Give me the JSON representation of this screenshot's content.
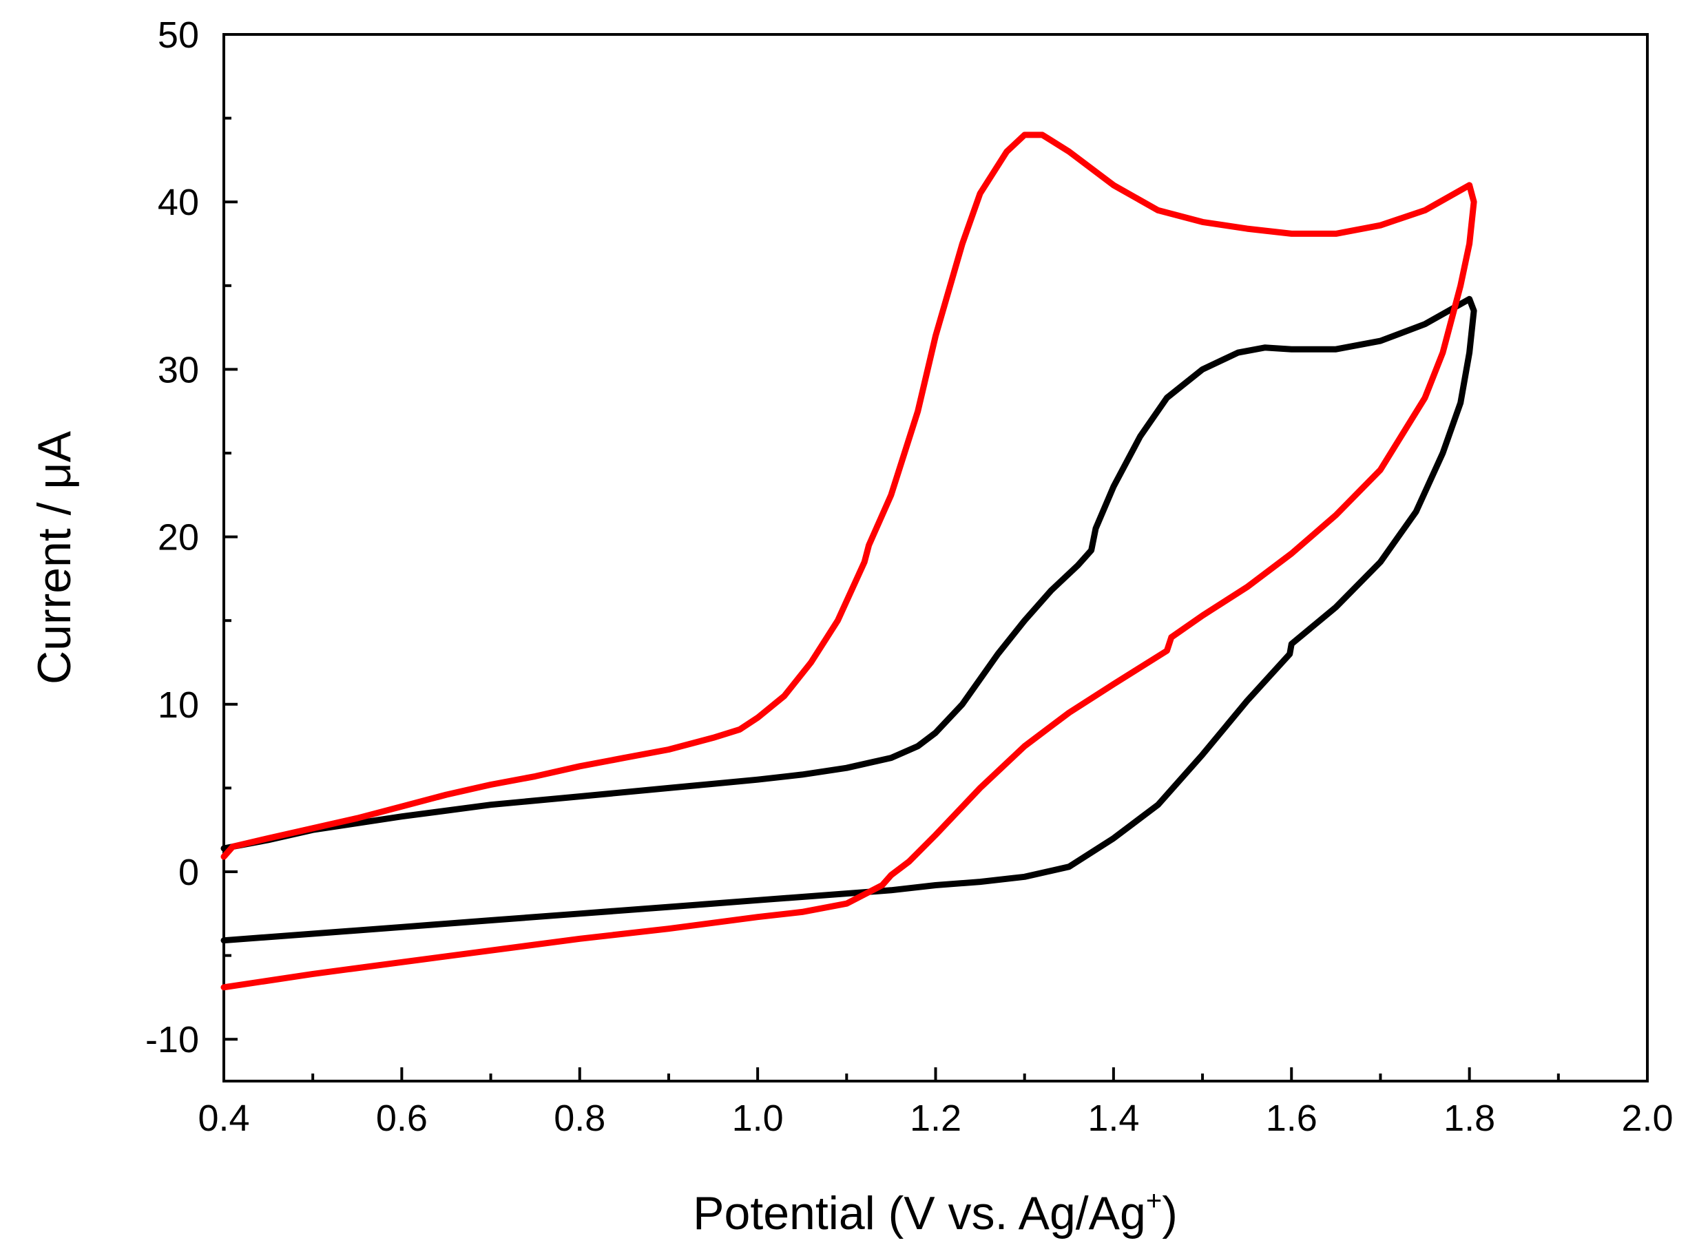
{
  "chart_data": {
    "type": "line",
    "title": "",
    "xlabel": "Potential (V vs. Ag/Ag",
    "xlabel_sup": "+",
    "xlabel_end": ")",
    "ylabel": "Current / μA",
    "xlim": [
      0.4,
      2.0
    ],
    "ylim": [
      -12.5,
      50
    ],
    "x_ticks": [
      0.4,
      0.6,
      0.8,
      1.0,
      1.2,
      1.4,
      1.6,
      1.8,
      2.0
    ],
    "x_tick_labels": [
      "0.4",
      "0.6",
      "0.8",
      "1.0",
      "1.2",
      "1.4",
      "1.6",
      "1.8",
      "2.0"
    ],
    "x_minor_ticks": [
      0.5,
      0.7,
      0.9,
      1.1,
      1.3,
      1.5,
      1.7,
      1.9
    ],
    "y_ticks": [
      -10,
      0,
      10,
      20,
      30,
      40,
      50
    ],
    "y_tick_labels": [
      "-10",
      "0",
      "10",
      "20",
      "30",
      "40",
      "50"
    ],
    "y_minor_ticks": [
      -5,
      5,
      15,
      25,
      35,
      45
    ],
    "grid": false,
    "series": [
      {
        "name": "black",
        "color": "#000000",
        "points": [
          [
            0.4,
            1.4
          ],
          [
            0.45,
            1.9
          ],
          [
            0.5,
            2.5
          ],
          [
            0.6,
            3.3
          ],
          [
            0.7,
            4.0
          ],
          [
            0.8,
            4.5
          ],
          [
            0.9,
            5.0
          ],
          [
            1.0,
            5.5
          ],
          [
            1.05,
            5.8
          ],
          [
            1.1,
            6.2
          ],
          [
            1.15,
            6.8
          ],
          [
            1.18,
            7.5
          ],
          [
            1.2,
            8.3
          ],
          [
            1.23,
            10.0
          ],
          [
            1.27,
            13.0
          ],
          [
            1.3,
            15.0
          ],
          [
            1.33,
            16.8
          ],
          [
            1.36,
            18.3
          ],
          [
            1.375,
            19.2
          ],
          [
            1.38,
            20.5
          ],
          [
            1.4,
            23.0
          ],
          [
            1.43,
            26.0
          ],
          [
            1.46,
            28.3
          ],
          [
            1.5,
            30.0
          ],
          [
            1.54,
            31.0
          ],
          [
            1.57,
            31.3
          ],
          [
            1.6,
            31.2
          ],
          [
            1.65,
            31.2
          ],
          [
            1.7,
            31.7
          ],
          [
            1.75,
            32.7
          ],
          [
            1.8,
            34.2
          ],
          [
            1.805,
            33.5
          ],
          [
            1.8,
            31.0
          ],
          [
            1.79,
            28.0
          ],
          [
            1.77,
            25.0
          ],
          [
            1.74,
            21.5
          ],
          [
            1.7,
            18.5
          ],
          [
            1.65,
            15.8
          ],
          [
            1.6,
            13.6
          ],
          [
            1.598,
            13.0
          ],
          [
            1.55,
            10.2
          ],
          [
            1.5,
            7.0
          ],
          [
            1.45,
            4.0
          ],
          [
            1.4,
            2.0
          ],
          [
            1.35,
            0.3
          ],
          [
            1.3,
            -0.3
          ],
          [
            1.25,
            -0.6
          ],
          [
            1.2,
            -0.8
          ],
          [
            1.15,
            -1.1
          ],
          [
            1.1,
            -1.3
          ],
          [
            1.0,
            -1.7
          ],
          [
            0.9,
            -2.1
          ],
          [
            0.8,
            -2.5
          ],
          [
            0.7,
            -2.9
          ],
          [
            0.6,
            -3.3
          ],
          [
            0.5,
            -3.7
          ],
          [
            0.4,
            -4.1
          ]
        ]
      },
      {
        "name": "red",
        "color": "#ff0000",
        "points": [
          [
            0.4,
            0.9
          ],
          [
            0.41,
            1.5
          ],
          [
            0.45,
            2.0
          ],
          [
            0.5,
            2.6
          ],
          [
            0.55,
            3.2
          ],
          [
            0.6,
            3.9
          ],
          [
            0.65,
            4.6
          ],
          [
            0.7,
            5.2
          ],
          [
            0.75,
            5.7
          ],
          [
            0.8,
            6.3
          ],
          [
            0.85,
            6.8
          ],
          [
            0.9,
            7.3
          ],
          [
            0.95,
            8.0
          ],
          [
            0.98,
            8.5
          ],
          [
            1.0,
            9.2
          ],
          [
            1.03,
            10.5
          ],
          [
            1.06,
            12.5
          ],
          [
            1.09,
            15.0
          ],
          [
            1.12,
            18.5
          ],
          [
            1.125,
            19.5
          ],
          [
            1.15,
            22.5
          ],
          [
            1.18,
            27.5
          ],
          [
            1.2,
            32.0
          ],
          [
            1.23,
            37.5
          ],
          [
            1.25,
            40.5
          ],
          [
            1.28,
            43.0
          ],
          [
            1.3,
            44.0
          ],
          [
            1.32,
            44.0
          ],
          [
            1.35,
            43.0
          ],
          [
            1.4,
            41.0
          ],
          [
            1.45,
            39.5
          ],
          [
            1.5,
            38.8
          ],
          [
            1.55,
            38.4
          ],
          [
            1.6,
            38.1
          ],
          [
            1.65,
            38.1
          ],
          [
            1.7,
            38.6
          ],
          [
            1.75,
            39.5
          ],
          [
            1.8,
            41.0
          ],
          [
            1.805,
            40.0
          ],
          [
            1.8,
            37.5
          ],
          [
            1.79,
            35.0
          ],
          [
            1.77,
            31.0
          ],
          [
            1.75,
            28.3
          ],
          [
            1.7,
            24.0
          ],
          [
            1.65,
            21.3
          ],
          [
            1.6,
            19.0
          ],
          [
            1.55,
            17.0
          ],
          [
            1.5,
            15.3
          ],
          [
            1.465,
            14.0
          ],
          [
            1.46,
            13.2
          ],
          [
            1.4,
            11.2
          ],
          [
            1.35,
            9.5
          ],
          [
            1.3,
            7.5
          ],
          [
            1.25,
            5.0
          ],
          [
            1.2,
            2.2
          ],
          [
            1.17,
            0.6
          ],
          [
            1.15,
            -0.2
          ],
          [
            1.14,
            -0.8
          ],
          [
            1.1,
            -1.9
          ],
          [
            1.05,
            -2.4
          ],
          [
            1.0,
            -2.7
          ],
          [
            0.9,
            -3.4
          ],
          [
            0.8,
            -4.0
          ],
          [
            0.7,
            -4.7
          ],
          [
            0.6,
            -5.4
          ],
          [
            0.5,
            -6.1
          ],
          [
            0.4,
            -6.9
          ]
        ]
      }
    ]
  }
}
